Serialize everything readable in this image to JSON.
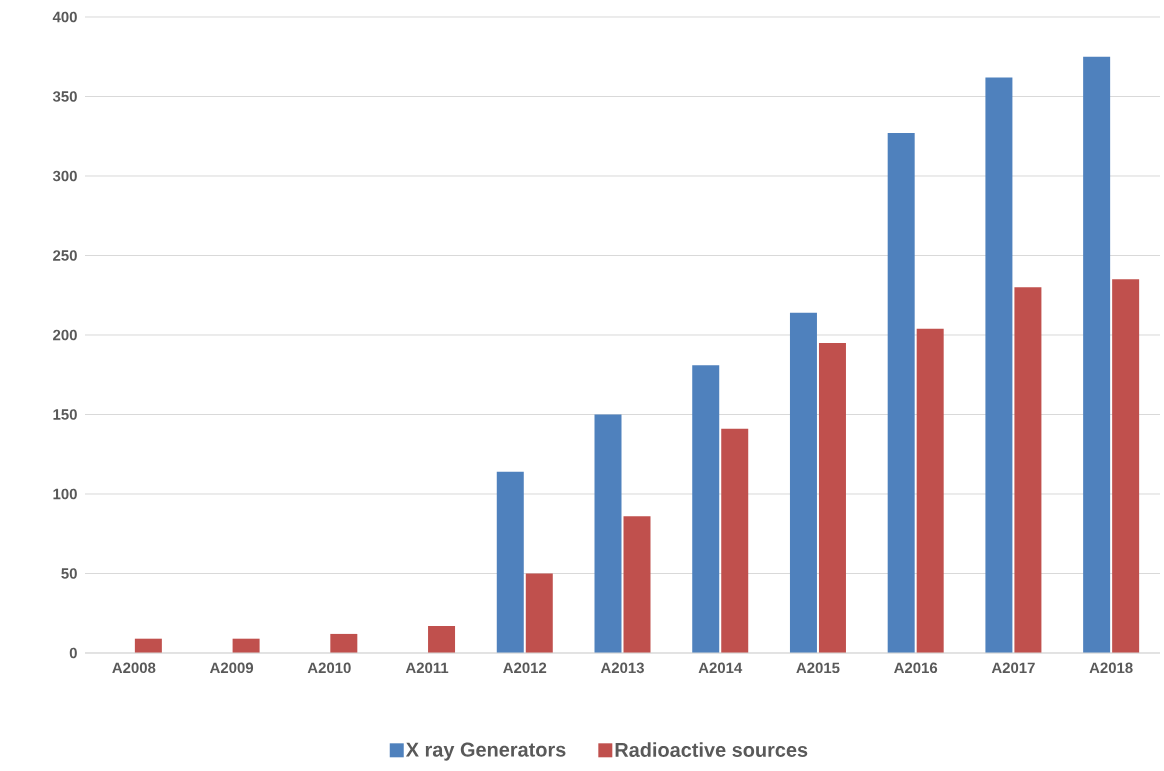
{
  "chart_data": {
    "type": "bar",
    "categories": [
      "A2008",
      "A2009",
      "A2010",
      "A2011",
      "A2012",
      "A2013",
      "A2014",
      "A2015",
      "A2016",
      "A2017",
      "A2018"
    ],
    "series": [
      {
        "name": "X ray Generators",
        "color": "#4f81bd",
        "values": [
          null,
          null,
          null,
          null,
          114,
          150,
          181,
          214,
          327,
          362,
          375
        ]
      },
      {
        "name": "Radioactive sources",
        "color": "#c0504d",
        "values": [
          9,
          9,
          12,
          17,
          50,
          86,
          141,
          195,
          204,
          230,
          235
        ]
      }
    ],
    "ylim": [
      0,
      400
    ],
    "yticks": [
      0,
      50,
      100,
      150,
      200,
      250,
      300,
      350,
      400
    ],
    "grid": "y",
    "legend": "bottom"
  }
}
